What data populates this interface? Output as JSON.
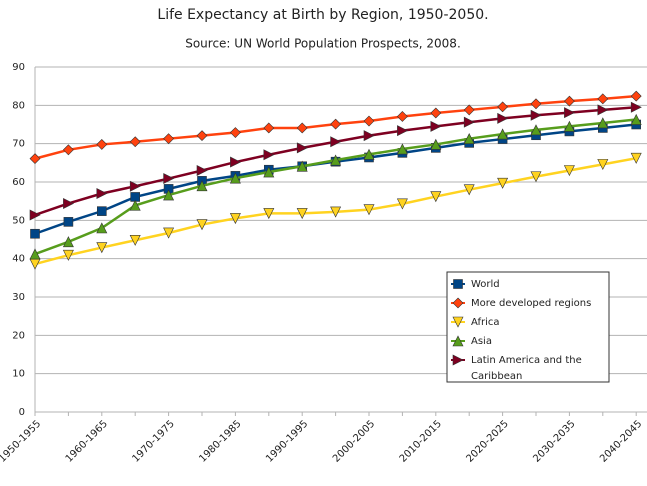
{
  "chart_data": {
    "type": "line",
    "title": "Life Expectancy at Birth by Region, 1950-2050.",
    "subtitle": "Source: UN World Population Prospects, 2008.",
    "categories": [
      "1950-1955",
      null,
      "1960-1965",
      null,
      "1970-1975",
      null,
      "1980-1985",
      null,
      "1990-1995",
      null,
      "2000-2005",
      null,
      "2010-2015",
      null,
      "2020-2025",
      null,
      "2030-2035",
      null,
      "2040-2045"
    ],
    "series": [
      {
        "name": "World",
        "color": "#004586",
        "marker": "square",
        "values": [
          46.5,
          49.6,
          52.4,
          56.1,
          58.2,
          60.3,
          61.6,
          63.2,
          64.1,
          65.3,
          66.4,
          67.6,
          68.9,
          70.2,
          71.2,
          72.2,
          73.2,
          74.1,
          75.0
        ]
      },
      {
        "name": "More developed regions",
        "color": "#ff420e",
        "marker": "diamond",
        "values": [
          66.1,
          68.4,
          69.8,
          70.5,
          71.3,
          72.1,
          72.9,
          74.1,
          74.1,
          75.1,
          75.9,
          77.1,
          78.0,
          78.8,
          79.6,
          80.4,
          81.1,
          81.7,
          82.4
        ]
      },
      {
        "name": "Africa",
        "color": "#ffd320",
        "marker": "triangle-down",
        "values": [
          38.6,
          40.9,
          42.9,
          44.8,
          46.7,
          48.9,
          50.5,
          51.8,
          51.8,
          52.2,
          52.8,
          54.3,
          56.2,
          58.0,
          59.7,
          61.4,
          63.0,
          64.6,
          66.2
        ]
      },
      {
        "name": "Asia",
        "color": "#579d1c",
        "marker": "triangle-up",
        "values": [
          41.2,
          44.4,
          48.0,
          53.9,
          56.6,
          59.0,
          61.0,
          62.6,
          64.1,
          65.7,
          67.2,
          68.6,
          69.8,
          71.3,
          72.5,
          73.6,
          74.5,
          75.4,
          76.3
        ]
      },
      {
        "name": "Latin America and the Caribbean",
        "color": "#7e0021",
        "marker": "triangle-right",
        "values": [
          51.4,
          54.4,
          57.0,
          58.9,
          60.9,
          63.0,
          65.2,
          67.1,
          68.9,
          70.5,
          72.1,
          73.4,
          74.5,
          75.6,
          76.6,
          77.4,
          78.1,
          78.8,
          79.5
        ]
      }
    ],
    "ylim": [
      0,
      90
    ],
    "yticks": [
      0,
      10,
      20,
      30,
      40,
      50,
      60,
      70,
      80,
      90
    ],
    "grid": true,
    "legend": "lower-right"
  }
}
